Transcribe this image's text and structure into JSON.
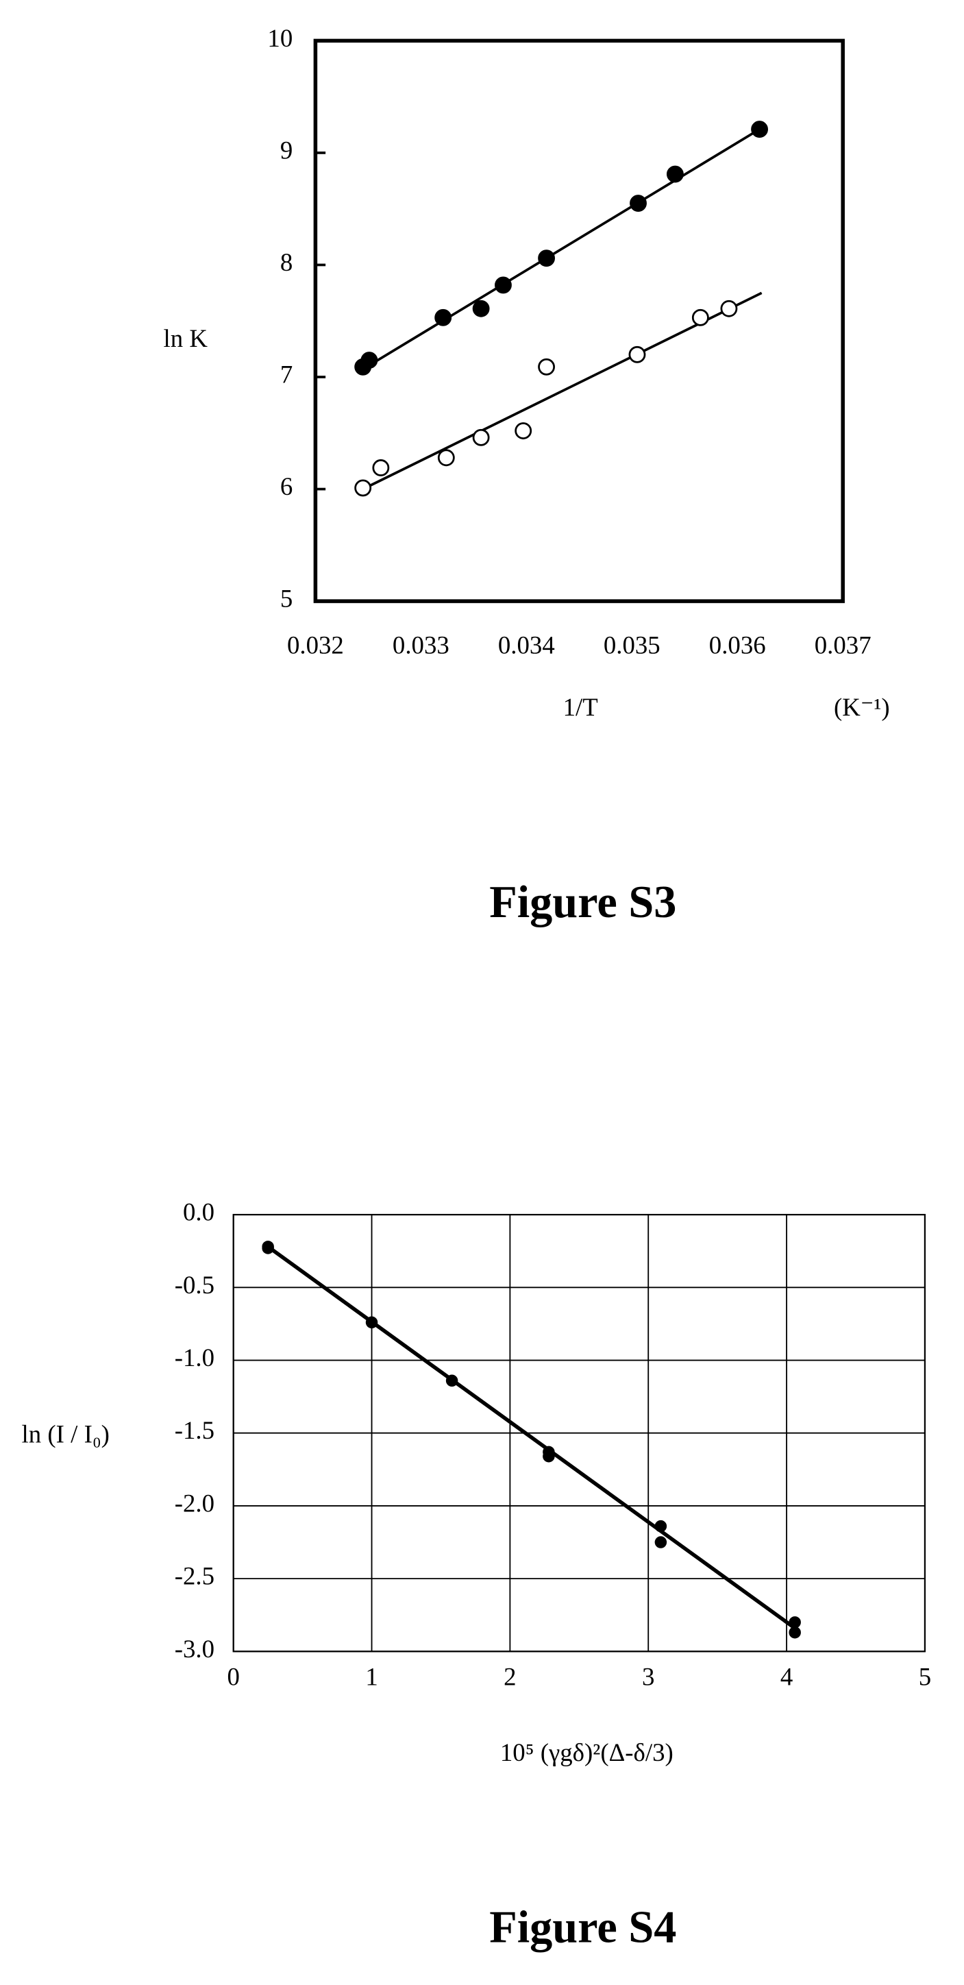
{
  "chart_data": [
    {
      "type": "scatter",
      "caption": "Figure S3",
      "y_label": "ln K",
      "x_label": "1/T",
      "x_unit": "(K⁻¹)",
      "xlim": [
        0.032,
        0.037
      ],
      "xticks": [
        0.032,
        0.033,
        0.034,
        0.035,
        0.036,
        0.037
      ],
      "ylim": [
        5,
        10
      ],
      "yticks": [
        5,
        6,
        7,
        8,
        9,
        10
      ],
      "grid": false,
      "color": "#000000",
      "series": [
        {
          "marker": "filled",
          "x": [
            0.03245,
            0.03251,
            0.03321,
            0.03357,
            0.03378,
            0.03419,
            0.03506,
            0.03541,
            0.03621
          ],
          "values": [
            7.09,
            7.15,
            7.53,
            7.61,
            7.82,
            8.06,
            8.55,
            8.81,
            9.21
          ],
          "fit_line": {
            "x": [
              0.03245,
              0.03621
            ],
            "y": [
              7.07,
              9.21
            ]
          }
        },
        {
          "marker": "open",
          "x": [
            0.03245,
            0.03262,
            0.03324,
            0.03357,
            0.03397,
            0.03419,
            0.03505,
            0.03565,
            0.03592
          ],
          "values": [
            6.01,
            6.19,
            6.28,
            6.46,
            6.52,
            7.09,
            7.2,
            7.53,
            7.61
          ],
          "fit_line": {
            "x": [
              0.03245,
              0.03623
            ],
            "y": [
              6.0,
              7.75
            ]
          }
        }
      ]
    },
    {
      "type": "scatter",
      "caption": "Figure S4",
      "y_label": "ln (I / I₀)",
      "x_label": "10⁵ (γgδ)²(Δ-δ/3)",
      "xlim": [
        0,
        5
      ],
      "xticks": [
        0,
        1,
        2,
        3,
        4,
        5
      ],
      "ylim": [
        -3,
        0
      ],
      "yticks": [
        {
          "value": 0,
          "label": "0.0"
        },
        -0.5,
        {
          "value": -1,
          "label": "-1.0"
        },
        -1.5,
        {
          "value": -2,
          "label": "-2.0"
        },
        -2.5,
        {
          "value": -3,
          "label": "-3.0"
        }
      ],
      "grid": true,
      "color": "#000000",
      "series": [
        {
          "marker": "filled",
          "x": [
            0.25,
            0.25,
            1.0,
            1.58,
            2.28,
            2.28,
            3.09,
            3.09,
            4.06,
            4.06
          ],
          "values": [
            -0.22,
            -0.23,
            -0.74,
            -1.14,
            -1.63,
            -1.66,
            -2.14,
            -2.25,
            -2.8,
            -2.87
          ],
          "fit_line": {
            "x": [
              0.25,
              4.06
            ],
            "y": [
              -0.22,
              -2.84
            ]
          }
        }
      ]
    }
  ]
}
